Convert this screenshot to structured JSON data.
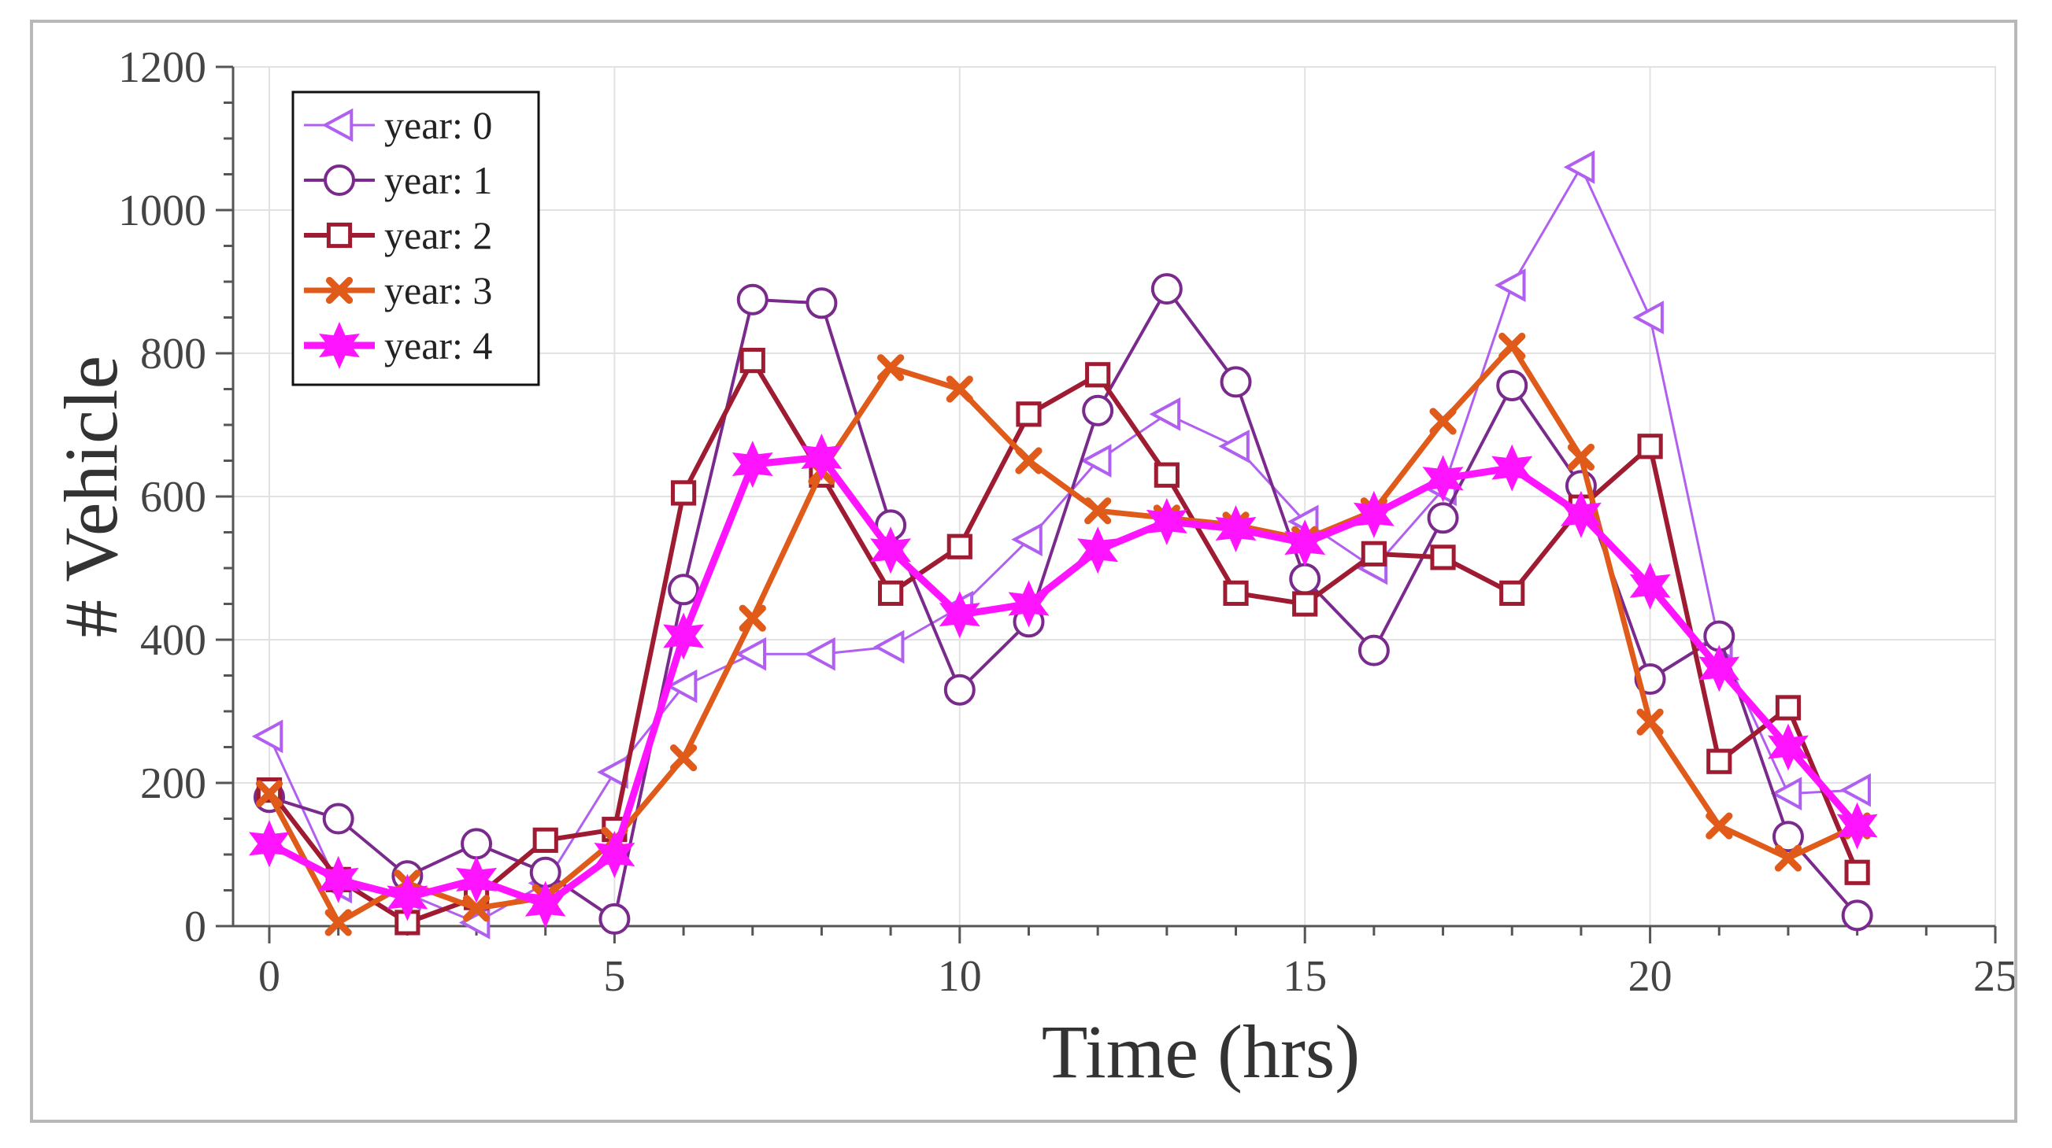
{
  "chart_data": {
    "type": "line",
    "title": "",
    "xlabel": "Time (hrs)",
    "ylabel": "# Vehicle",
    "xlim": [
      0,
      25
    ],
    "ylim": [
      0,
      1200
    ],
    "xticks": [
      0,
      5,
      10,
      15,
      20,
      25
    ],
    "yticks": [
      0,
      200,
      400,
      600,
      800,
      1000,
      1200
    ],
    "grid": true,
    "legend_position": "top-left",
    "x": [
      0,
      1,
      2,
      3,
      4,
      5,
      6,
      7,
      8,
      9,
      10,
      11,
      12,
      13,
      14,
      15,
      16,
      17,
      18,
      19,
      20,
      21,
      22,
      23
    ],
    "series": [
      {
        "name": "year: 0",
        "color": "#b05ff0",
        "marker": "triangle-left",
        "values": [
          265,
          55,
          45,
          5,
          60,
          215,
          335,
          380,
          380,
          390,
          445,
          540,
          650,
          715,
          670,
          565,
          500,
          610,
          895,
          1060,
          850,
          395,
          185,
          190
        ]
      },
      {
        "name": "year: 1",
        "color": "#7a2a8c",
        "marker": "circle",
        "values": [
          180,
          150,
          70,
          115,
          75,
          10,
          470,
          875,
          870,
          560,
          330,
          425,
          720,
          890,
          760,
          485,
          385,
          570,
          755,
          615,
          345,
          405,
          125,
          15
        ]
      },
      {
        "name": "year: 2",
        "color": "#9e1b32",
        "marker": "square",
        "values": [
          190,
          65,
          5,
          40,
          120,
          135,
          605,
          790,
          630,
          465,
          530,
          715,
          770,
          630,
          465,
          450,
          520,
          515,
          465,
          585,
          670,
          230,
          305,
          75
        ]
      },
      {
        "name": "year: 3",
        "color": "#e05a1a",
        "marker": "x",
        "values": [
          185,
          5,
          60,
          25,
          40,
          120,
          235,
          430,
          635,
          780,
          750,
          650,
          580,
          570,
          560,
          540,
          580,
          705,
          810,
          655,
          285,
          140,
          95,
          140
        ]
      },
      {
        "name": "year: 4",
        "color": "#ff14ff",
        "marker": "star",
        "values": [
          115,
          65,
          40,
          65,
          30,
          100,
          405,
          645,
          655,
          525,
          435,
          450,
          525,
          565,
          555,
          535,
          575,
          625,
          640,
          575,
          475,
          360,
          250,
          140
        ]
      }
    ]
  }
}
